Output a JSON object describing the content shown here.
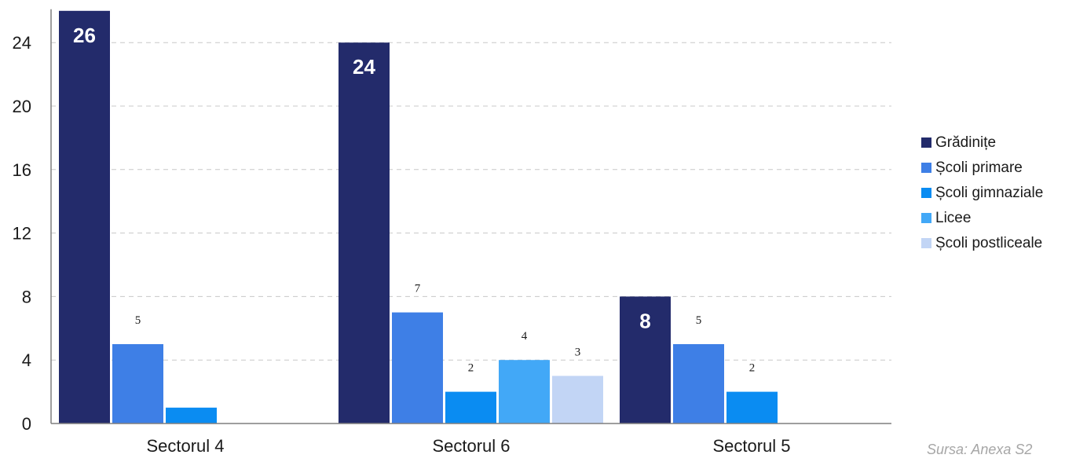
{
  "chart_data": {
    "type": "bar",
    "categories": [
      "Sectorul 4",
      "Sectorul 6",
      "Sectorul 5"
    ],
    "series": [
      {
        "name": "Grădinițe",
        "color": "#232b6b",
        "values": [
          26,
          24,
          8
        ]
      },
      {
        "name": "Școli primare",
        "color": "#3e7fe6",
        "values": [
          5,
          7,
          5
        ]
      },
      {
        "name": "Școli gimnaziale",
        "color": "#0a8cf2",
        "values": [
          1,
          2,
          2
        ]
      },
      {
        "name": "Licee",
        "color": "#42a8f7",
        "values": [
          null,
          4,
          null
        ]
      },
      {
        "name": "Școli postliceale",
        "color": "#c2d5f5",
        "values": [
          null,
          3,
          null
        ]
      }
    ],
    "data_labels": [
      [
        "26",
        "5",
        "",
        "",
        ""
      ],
      [
        "24",
        "7",
        "2",
        "4",
        "3"
      ],
      [
        "8",
        "5",
        "2",
        "",
        ""
      ]
    ],
    "yticks": [
      0,
      4,
      8,
      12,
      16,
      20,
      24
    ],
    "ylim": [
      0,
      26
    ],
    "grid": true,
    "legend_position": "right",
    "title": "",
    "xlabel": "",
    "ylabel": "",
    "source": "Sursa: Anexa S2"
  }
}
